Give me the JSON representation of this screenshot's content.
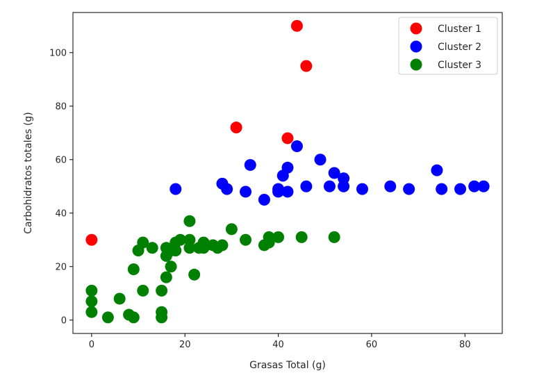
{
  "chart_data": {
    "type": "scatter",
    "title": "",
    "xlabel": "Grasas Total (g)",
    "ylabel": "Carbohidratos totales (g)",
    "xlim": [
      -4,
      88
    ],
    "ylim": [
      -5,
      115
    ],
    "xticks": [
      0,
      20,
      40,
      60,
      80
    ],
    "yticks": [
      0,
      20,
      40,
      60,
      80,
      100
    ],
    "grid": false,
    "legend_position": "top-right",
    "series": [
      {
        "name": "Cluster 1",
        "color": "#ff0000",
        "points": [
          [
            0,
            30
          ],
          [
            31,
            72
          ],
          [
            42,
            68
          ],
          [
            44,
            110
          ],
          [
            46,
            95
          ]
        ]
      },
      {
        "name": "Cluster 2",
        "color": "#0000ff",
        "points": [
          [
            18,
            49
          ],
          [
            28,
            51
          ],
          [
            29,
            49
          ],
          [
            33,
            48
          ],
          [
            34,
            58
          ],
          [
            37,
            45
          ],
          [
            40,
            48
          ],
          [
            40,
            49
          ],
          [
            41,
            54
          ],
          [
            42,
            57
          ],
          [
            42,
            48
          ],
          [
            44,
            65
          ],
          [
            46,
            50
          ],
          [
            49,
            60
          ],
          [
            51,
            50
          ],
          [
            52,
            55
          ],
          [
            54,
            53
          ],
          [
            54,
            50
          ],
          [
            58,
            49
          ],
          [
            64,
            50
          ],
          [
            68,
            49
          ],
          [
            74,
            56
          ],
          [
            75,
            49
          ],
          [
            79,
            49
          ],
          [
            82,
            50
          ],
          [
            84,
            50
          ]
        ]
      },
      {
        "name": "Cluster 3",
        "color": "#008000",
        "points": [
          [
            0,
            11
          ],
          [
            0,
            7
          ],
          [
            0,
            3
          ],
          [
            3.5,
            1
          ],
          [
            6,
            8
          ],
          [
            8,
            2
          ],
          [
            9,
            1
          ],
          [
            9,
            19
          ],
          [
            10,
            26
          ],
          [
            11,
            29
          ],
          [
            11,
            11
          ],
          [
            13,
            27
          ],
          [
            15,
            11
          ],
          [
            15,
            3
          ],
          [
            15,
            1
          ],
          [
            16,
            27
          ],
          [
            16,
            24
          ],
          [
            16,
            16
          ],
          [
            17,
            26
          ],
          [
            17,
            20
          ],
          [
            18,
            29
          ],
          [
            18,
            26
          ],
          [
            19,
            30
          ],
          [
            21,
            37
          ],
          [
            21,
            30
          ],
          [
            21,
            27
          ],
          [
            22,
            17
          ],
          [
            23,
            27
          ],
          [
            24,
            29
          ],
          [
            24,
            27
          ],
          [
            26,
            28
          ],
          [
            27,
            27
          ],
          [
            28,
            28
          ],
          [
            30,
            34
          ],
          [
            33,
            30
          ],
          [
            37,
            28
          ],
          [
            38,
            31
          ],
          [
            38,
            29
          ],
          [
            40,
            31
          ],
          [
            45,
            31
          ],
          [
            52,
            31
          ]
        ]
      }
    ]
  }
}
